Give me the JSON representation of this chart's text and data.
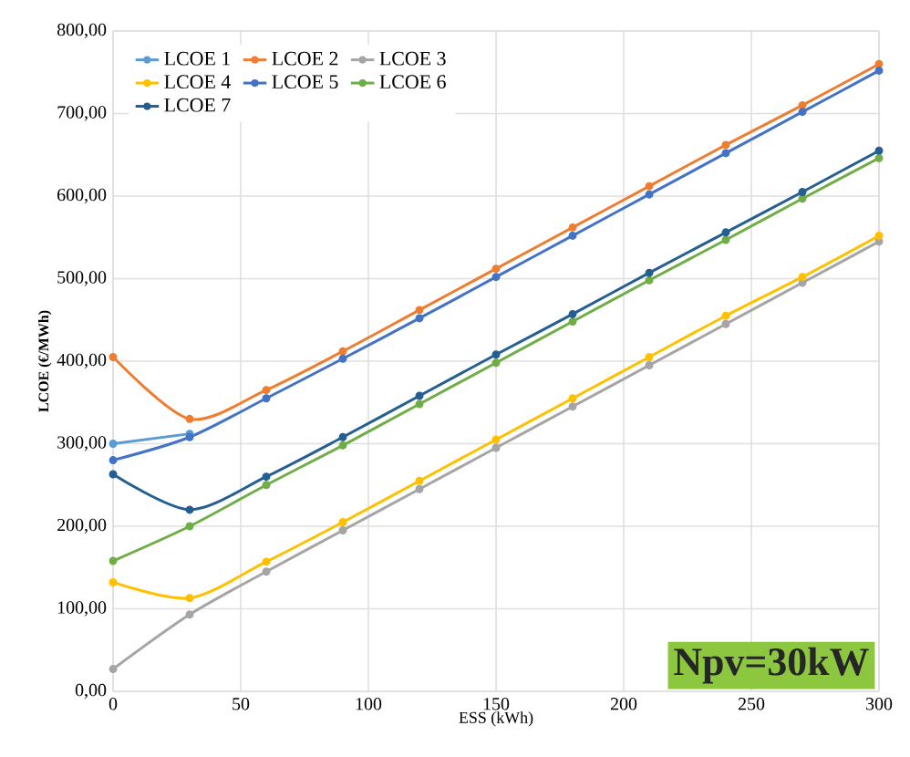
{
  "chart_data": {
    "type": "line",
    "xlabel": "ESS (kWh)",
    "ylabel": "LCOE (€/MWh)",
    "x": [
      0,
      30,
      60,
      90,
      120,
      150,
      180,
      210,
      240,
      270,
      300
    ],
    "series": [
      {
        "name": "LCOE 1",
        "color": "#5b9bd5",
        "values": [
          300,
          312,
          null,
          null,
          null,
          null,
          null,
          null,
          null,
          null,
          null
        ]
      },
      {
        "name": "LCOE 2",
        "color": "#ed7d31",
        "values": [
          405,
          330,
          365,
          412,
          462,
          512,
          562,
          612,
          662,
          710,
          760
        ]
      },
      {
        "name": "LCOE 3",
        "color": "#a5a5a5",
        "values": [
          27,
          93,
          145,
          195,
          245,
          295,
          345,
          395,
          445,
          495,
          545
        ]
      },
      {
        "name": "LCOE 4",
        "color": "#ffc000",
        "values": [
          132,
          113,
          157,
          205,
          255,
          305,
          355,
          405,
          455,
          502,
          552
        ]
      },
      {
        "name": "LCOE 5",
        "color": "#4472c4",
        "values": [
          280,
          308,
          355,
          403,
          452,
          502,
          552,
          602,
          652,
          702,
          752
        ]
      },
      {
        "name": "LCOE 6",
        "color": "#70ad47",
        "values": [
          158,
          200,
          250,
          298,
          348,
          398,
          448,
          498,
          547,
          597,
          646
        ]
      },
      {
        "name": "LCOE 7",
        "color": "#255e91",
        "values": [
          263,
          220,
          260,
          308,
          358,
          408,
          457,
          507,
          556,
          605,
          655
        ]
      }
    ],
    "xlim": [
      0,
      300
    ],
    "xticks": [
      0,
      50,
      100,
      150,
      200,
      250,
      300
    ],
    "ylim": [
      0,
      800
    ],
    "yticks": [
      {
        "value": 0,
        "label": "0,00"
      },
      {
        "value": 100,
        "label": "100,00"
      },
      {
        "value": 200,
        "label": "200,00"
      },
      {
        "value": 300,
        "label": "300,00"
      },
      {
        "value": 400,
        "label": "400,00"
      },
      {
        "value": 500,
        "label": "500,00"
      },
      {
        "value": 600,
        "label": "600,00"
      },
      {
        "value": 700,
        "label": "700,00"
      },
      {
        "value": 800,
        "label": "800,00"
      }
    ],
    "annotations": [
      "Npv=30kW"
    ],
    "grid": true,
    "legend": "top left",
    "marker": "circle",
    "line_style": "solid"
  }
}
